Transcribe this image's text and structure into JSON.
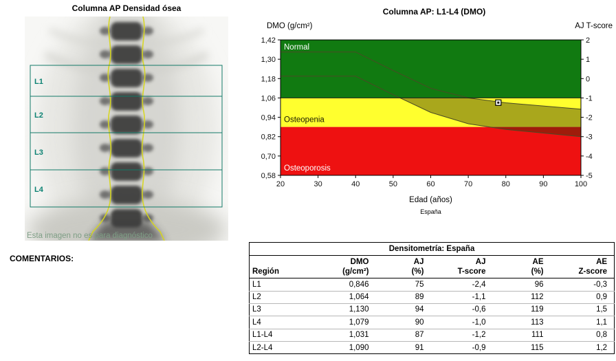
{
  "scan": {
    "title": "Columna AP Densidad ósea",
    "caption": "Esta imagen no es para diagnóstico",
    "regions": [
      "L1",
      "L2",
      "L3",
      "L4"
    ]
  },
  "comments_label": "COMENTARIOS:",
  "chart_data": {
    "type": "area",
    "title": "Columna AP: L1-L4 (DMO)",
    "y_axis_left_label": "DMO (g/cm²)",
    "y_axis_right_label": "AJ T-score",
    "x_axis_label": "Edad (años)",
    "source_label": "España",
    "xlim": [
      20,
      100
    ],
    "ylim": [
      0.58,
      1.42
    ],
    "x_ticks": [
      "20",
      "30",
      "40",
      "50",
      "60",
      "70",
      "80",
      "90",
      "100"
    ],
    "y_ticks_left": [
      "1,42",
      "1,30",
      "1,18",
      "1,06",
      "0,94",
      "0,82",
      "0,70",
      "0,58"
    ],
    "y_ticks_left_values": [
      1.42,
      1.3,
      1.18,
      1.06,
      0.94,
      0.82,
      0.7,
      0.58
    ],
    "y_ticks_right": [
      "2",
      "1",
      "0",
      "-1",
      "-2",
      "-3",
      "-4",
      "-5"
    ],
    "zones": [
      {
        "label": "Normal",
        "color": "#117a11",
        "range": [
          1.06,
          1.42
        ],
        "label_color": "#ffffff"
      },
      {
        "label": "Osteopenia",
        "color": "#ffff2e",
        "range": [
          0.88,
          1.06
        ],
        "label_color": "#1a1a00"
      },
      {
        "label": "Osteoporosis",
        "color": "#ee1111",
        "range": [
          0.58,
          0.88
        ],
        "label_color": "#ffffff"
      }
    ],
    "reference_band": {
      "upper": [
        [
          20,
          1.345
        ],
        [
          40,
          1.345
        ],
        [
          50,
          1.23
        ],
        [
          60,
          1.12
        ],
        [
          70,
          1.06
        ],
        [
          80,
          1.03
        ],
        [
          100,
          0.99
        ]
      ],
      "lower": [
        [
          20,
          1.195
        ],
        [
          40,
          1.195
        ],
        [
          50,
          1.08
        ],
        [
          60,
          0.97
        ],
        [
          70,
          0.9
        ],
        [
          80,
          0.865
        ],
        [
          100,
          0.82
        ]
      ]
    },
    "patient_point": {
      "age": 78,
      "dmo": 1.031
    }
  },
  "table": {
    "title": "Densitometría: España",
    "columns": [
      {
        "line1": "",
        "line2": "Región"
      },
      {
        "line1": "DMO",
        "line2": "(g/cm²)"
      },
      {
        "line1": "AJ",
        "line2": "(%)"
      },
      {
        "line1": "AJ",
        "line2": "T-score"
      },
      {
        "line1": "AE",
        "line2": "(%)"
      },
      {
        "line1": "AE",
        "line2": "Z-score"
      }
    ],
    "rows": [
      [
        "L1",
        "0,846",
        "75",
        "-2,4",
        "96",
        "-0,3"
      ],
      [
        "L2",
        "1,064",
        "89",
        "-1,1",
        "112",
        "0,9"
      ],
      [
        "L3",
        "1,130",
        "94",
        "-0,6",
        "119",
        "1,5"
      ],
      [
        "L4",
        "1,079",
        "90",
        "-1,0",
        "113",
        "1,1"
      ],
      [
        "L1-L4",
        "1,031",
        "87",
        "-1,2",
        "111",
        "0,8"
      ],
      [
        "L2-L4",
        "1,090",
        "91",
        "-0,9",
        "115",
        "1,2"
      ]
    ]
  }
}
